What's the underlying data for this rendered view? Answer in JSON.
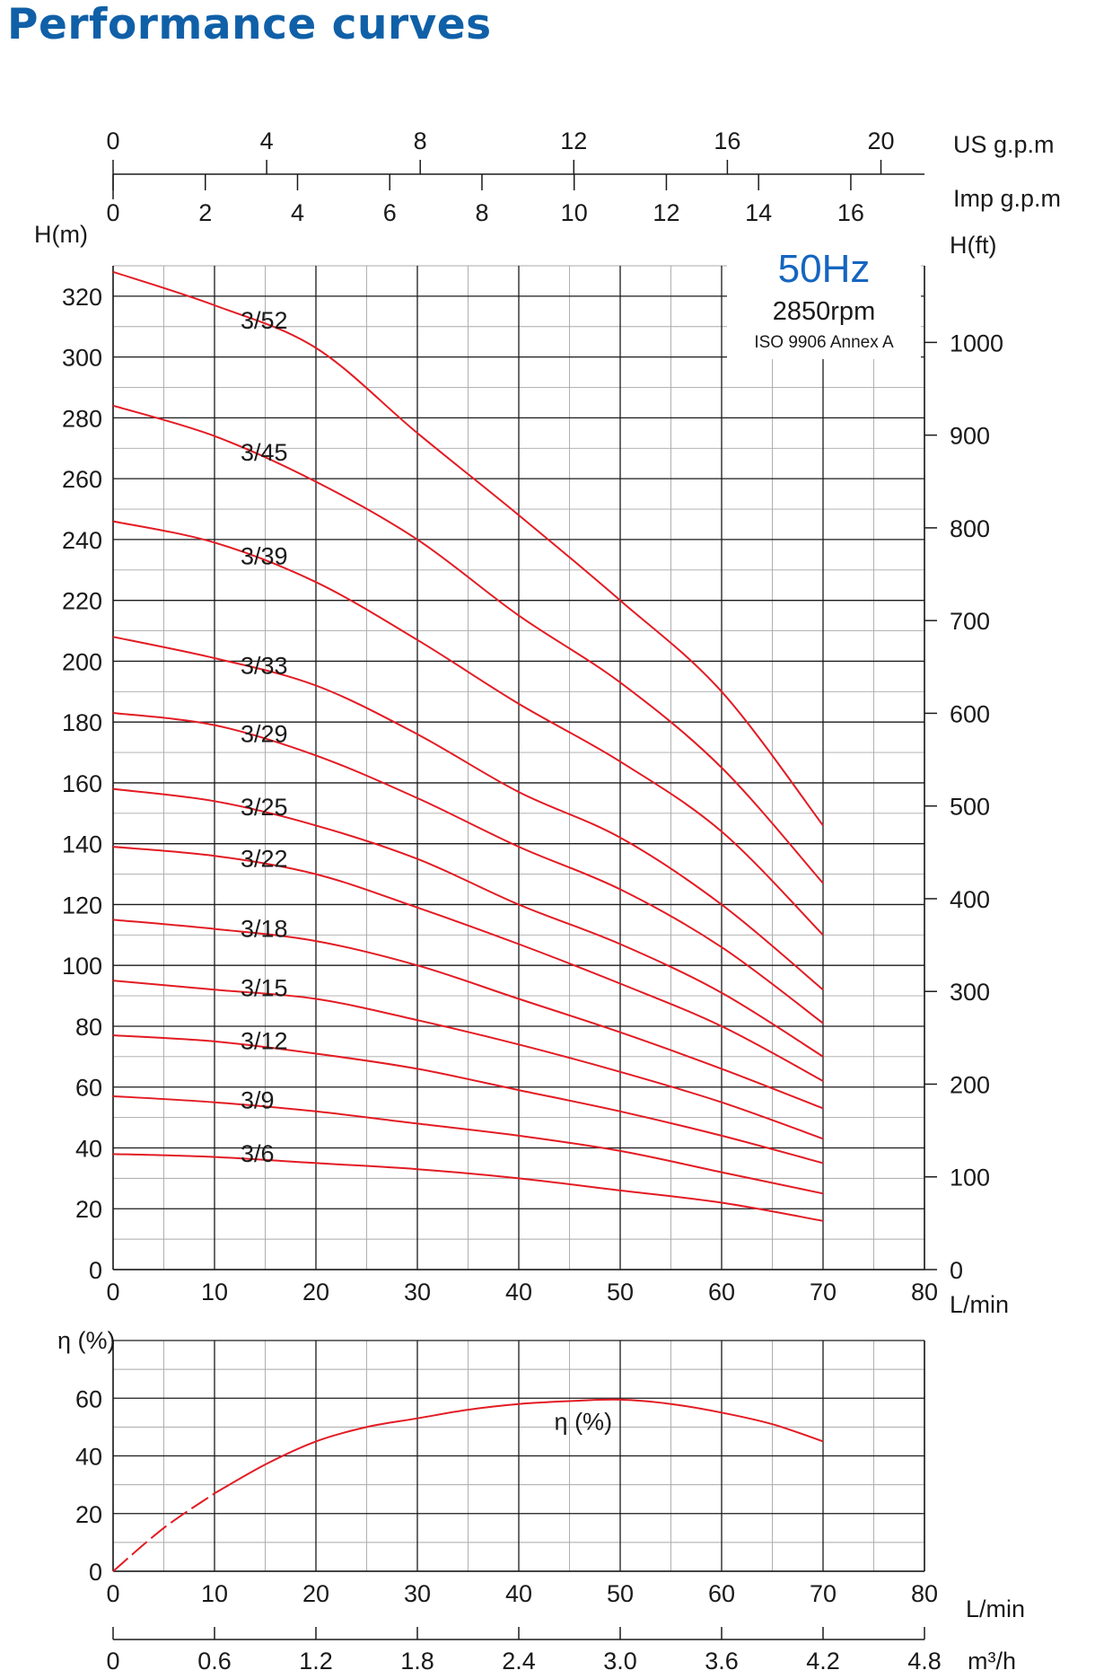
{
  "title": "Performance curves",
  "chart_data": [
    {
      "type": "line",
      "x_label": "L/min",
      "x_ticks": [
        0,
        10,
        20,
        30,
        40,
        50,
        60,
        70,
        80
      ],
      "xlim": [
        0,
        80
      ],
      "y_label": "H(m)",
      "y_ticks": [
        0,
        20,
        40,
        60,
        80,
        100,
        120,
        140,
        160,
        180,
        200,
        220,
        240,
        260,
        280,
        300,
        320
      ],
      "ylim": [
        0,
        330
      ],
      "y2_label": "H(ft)",
      "y2_ticks": [
        0,
        100,
        200,
        300,
        400,
        500,
        600,
        700,
        800,
        900,
        1000
      ],
      "top_axis_us": {
        "label": "US g.p.m",
        "ticks": [
          0,
          4,
          8,
          12,
          16,
          20
        ]
      },
      "top_axis_imp": {
        "label": "Imp g.p.m",
        "ticks": [
          0,
          2,
          4,
          6,
          8,
          10,
          12,
          14,
          16
        ]
      },
      "grid": true,
      "annotation_freq": "50Hz",
      "annotation_rpm": "2850rpm",
      "annotation_std": "ISO 9906 Annex A",
      "series_color": "#e31b23",
      "series": [
        {
          "name": "3/52",
          "x": [
            0,
            10,
            20,
            30,
            40,
            50,
            60,
            70
          ],
          "y": [
            328,
            317,
            303,
            275,
            248,
            220,
            190,
            146
          ]
        },
        {
          "name": "3/45",
          "x": [
            0,
            10,
            20,
            30,
            40,
            50,
            60,
            70
          ],
          "y": [
            284,
            274,
            259,
            240,
            215,
            193,
            165,
            127
          ]
        },
        {
          "name": "3/39",
          "x": [
            0,
            10,
            20,
            30,
            40,
            50,
            60,
            70
          ],
          "y": [
            246,
            239,
            226,
            207,
            186,
            167,
            144,
            110
          ]
        },
        {
          "name": "3/33",
          "x": [
            0,
            10,
            20,
            30,
            40,
            50,
            60,
            70
          ],
          "y": [
            208,
            201,
            192,
            176,
            157,
            142,
            120,
            92
          ]
        },
        {
          "name": "3/29",
          "x": [
            0,
            10,
            20,
            30,
            40,
            50,
            60,
            70
          ],
          "y": [
            183,
            179,
            169,
            155,
            139,
            125,
            106,
            81
          ]
        },
        {
          "name": "3/25",
          "x": [
            0,
            10,
            20,
            30,
            40,
            50,
            60,
            70
          ],
          "y": [
            158,
            154,
            146,
            135,
            120,
            107,
            91,
            70
          ]
        },
        {
          "name": "3/22",
          "x": [
            0,
            10,
            20,
            30,
            40,
            50,
            60,
            70
          ],
          "y": [
            139,
            136,
            130,
            119,
            107,
            94,
            80,
            62
          ]
        },
        {
          "name": "3/18",
          "x": [
            0,
            10,
            20,
            30,
            40,
            50,
            60,
            70
          ],
          "y": [
            115,
            112,
            108,
            100,
            89,
            78,
            66,
            53
          ]
        },
        {
          "name": "3/15",
          "x": [
            0,
            10,
            20,
            30,
            40,
            50,
            60,
            70
          ],
          "y": [
            95,
            92,
            89,
            82,
            74,
            65,
            55,
            43
          ]
        },
        {
          "name": "3/12",
          "x": [
            0,
            10,
            20,
            30,
            40,
            50,
            60,
            70
          ],
          "y": [
            77,
            75,
            71,
            66,
            59,
            52,
            44,
            35
          ]
        },
        {
          "name": "3/9",
          "x": [
            0,
            10,
            20,
            30,
            40,
            50,
            60,
            70
          ],
          "y": [
            57,
            55,
            52,
            48,
            44,
            39,
            32,
            25
          ]
        },
        {
          "name": "3/6",
          "x": [
            0,
            10,
            20,
            30,
            40,
            50,
            60,
            70
          ],
          "y": [
            38,
            37,
            35,
            33,
            30,
            26,
            22,
            16
          ]
        }
      ]
    },
    {
      "type": "line",
      "x_label": "L/min",
      "x_ticks": [
        0,
        10,
        20,
        30,
        40,
        50,
        60,
        70,
        80
      ],
      "xlim": [
        0,
        80
      ],
      "y_label": "η (%)",
      "y_ticks": [
        0,
        20,
        40,
        60
      ],
      "ylim": [
        0,
        80
      ],
      "bottom_axis": {
        "label": "m³/h",
        "ticks": [
          "0",
          "0.6",
          "1.2",
          "1.8",
          "2.4",
          "3.0",
          "3.6",
          "4.2",
          "4.8"
        ]
      },
      "grid": true,
      "series": [
        {
          "name": "η (%)",
          "x": [
            0,
            5,
            10,
            15,
            20,
            25,
            30,
            35,
            40,
            45,
            50,
            55,
            60,
            65,
            70
          ],
          "y": [
            0,
            15,
            27,
            37,
            45,
            50,
            53,
            56,
            58,
            59,
            59.5,
            58,
            55,
            51,
            45
          ],
          "dashed_until_x": 10
        }
      ]
    }
  ]
}
